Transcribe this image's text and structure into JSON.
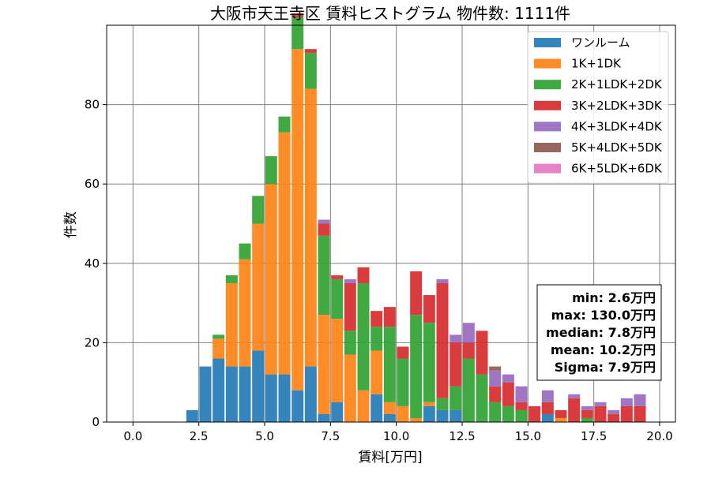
{
  "chart_data": {
    "type": "bar",
    "stacked": true,
    "title": "大阪市天王寺区 賃料ヒストグラム  物件数: 1111件",
    "xlabel": "賃料[万円]",
    "ylabel": "件数",
    "xlim": [
      -1.0,
      20.6
    ],
    "ylim": [
      0,
      100
    ],
    "xticks": [
      "0.0",
      "2.5",
      "5.0",
      "7.5",
      "10.0",
      "12.5",
      "15.0",
      "17.5",
      "20.0"
    ],
    "yticks": [
      "0",
      "20",
      "40",
      "60",
      "80"
    ],
    "grid": true,
    "legend_position": "top-right",
    "bin_width": 0.5,
    "x": [
      2.25,
      2.75,
      3.25,
      3.75,
      4.25,
      4.75,
      5.25,
      5.75,
      6.25,
      6.75,
      7.25,
      7.75,
      8.25,
      8.75,
      9.25,
      9.75,
      10.25,
      10.75,
      11.25,
      11.75,
      12.25,
      12.75,
      13.25,
      13.75,
      14.25,
      14.75,
      15.25,
      15.75,
      16.25,
      16.75,
      17.25,
      17.75,
      18.25,
      18.75,
      19.25,
      19.75
    ],
    "series": [
      {
        "name": "ワンルーム",
        "color": "#1f77b4",
        "values": [
          3,
          14,
          16,
          14,
          14,
          18,
          12,
          12,
          8,
          14,
          2,
          5,
          0,
          0,
          7,
          2,
          0,
          0,
          4,
          3,
          3,
          0,
          0,
          0,
          0,
          0,
          0,
          2,
          0,
          0,
          0,
          0,
          0,
          0,
          0,
          0
        ]
      },
      {
        "name": "1K+1DK",
        "color": "#ff7f0e",
        "values": [
          0,
          0,
          5,
          21,
          27,
          32,
          48,
          61,
          86,
          70,
          25,
          21,
          17,
          8,
          11,
          3,
          4,
          1,
          1,
          0,
          0,
          0,
          0,
          0,
          0,
          0,
          0,
          0,
          1,
          0,
          0,
          0,
          0,
          0,
          0,
          0
        ]
      },
      {
        "name": "2K+1LDK+2DK",
        "color": "#2ca02c",
        "values": [
          0,
          0,
          1,
          2,
          4,
          7,
          7,
          4,
          8,
          9,
          20,
          10,
          6,
          27,
          6,
          19,
          12,
          26,
          20,
          3,
          6,
          16,
          12,
          5,
          4,
          3,
          0,
          0,
          0,
          0,
          1,
          0,
          0,
          0,
          0,
          0
        ]
      },
      {
        "name": "3K+2LDK+3DK",
        "color": "#d62728",
        "values": [
          0,
          0,
          0,
          0,
          0,
          0,
          0,
          0,
          1,
          1,
          3,
          1,
          12,
          4,
          4,
          5,
          3,
          11,
          7,
          29,
          11,
          4,
          11,
          4,
          6,
          2,
          4,
          3,
          2,
          6,
          2,
          4,
          2,
          4,
          4,
          0
        ]
      },
      {
        "name": "4K+3LDK+4DK",
        "color": "#9467bd",
        "values": [
          0,
          0,
          0,
          0,
          0,
          0,
          0,
          0,
          0,
          0,
          1,
          0,
          1,
          0,
          0,
          0,
          0,
          0,
          0,
          1,
          2,
          5,
          0,
          4,
          2,
          4,
          0,
          3,
          0,
          1,
          1,
          1,
          1,
          2,
          3,
          0
        ]
      },
      {
        "name": "5K+4LDK+5DK",
        "color": "#8c564b",
        "values": [
          0,
          0,
          0,
          0,
          0,
          0,
          0,
          0,
          0,
          0,
          0,
          0,
          0,
          0,
          0,
          0,
          0,
          0,
          0,
          0,
          0,
          0,
          0,
          1,
          0,
          0,
          0,
          0,
          0,
          0,
          0,
          0,
          0,
          0,
          0,
          0
        ]
      },
      {
        "name": "6K+5LDK+6DK",
        "color": "#e377c2",
        "values": [
          0,
          0,
          0,
          0,
          0,
          0,
          0,
          0,
          0,
          0,
          0,
          0,
          0,
          0,
          0,
          0,
          0,
          0,
          0,
          0,
          0,
          0,
          0,
          0,
          0,
          0,
          0,
          0,
          0,
          0,
          0,
          0,
          0,
          0,
          0,
          0
        ]
      }
    ],
    "stats": [
      "min: 2.6万円",
      "max: 130.0万円",
      "median: 7.8万円",
      "mean: 10.2万円",
      "Sigma: 7.9万円"
    ]
  }
}
